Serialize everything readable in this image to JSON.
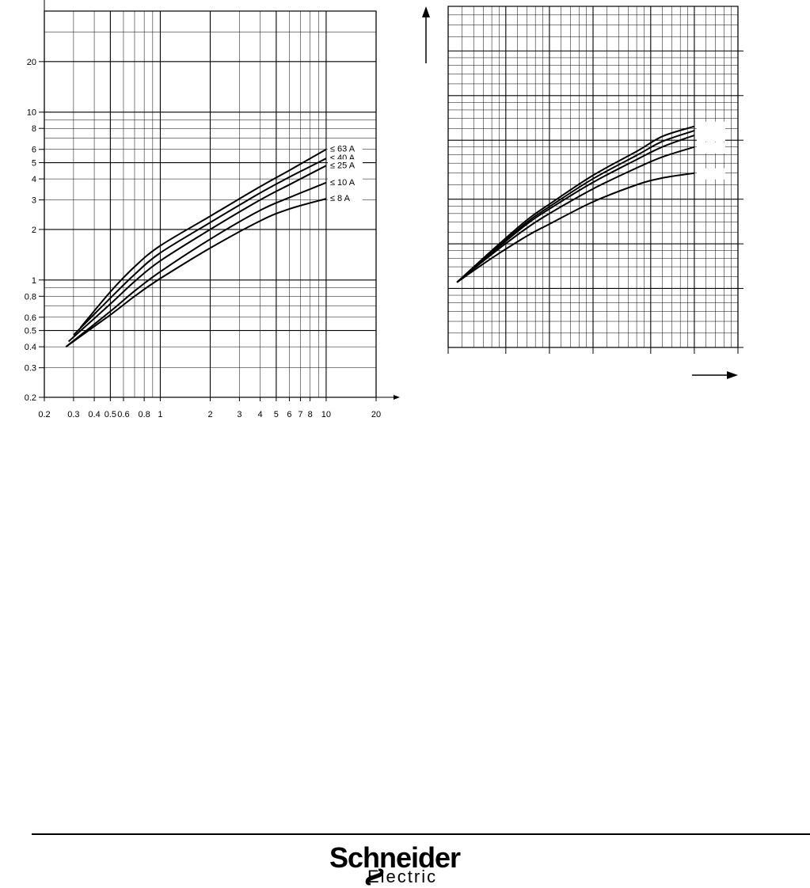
{
  "chart_data": [
    {
      "type": "line",
      "xscale": "log",
      "yscale": "log",
      "xlim": [
        0.2,
        20
      ],
      "ylim": [
        0.2,
        40
      ],
      "grid": true,
      "x_ticks": [
        "0.2",
        "0.3",
        "0.4",
        "0.5",
        "0.6",
        "0.8",
        "1",
        "2",
        "3",
        "4",
        "5",
        "6",
        "7",
        "8",
        "10",
        "20"
      ],
      "y_ticks": [
        "0.2",
        "0.3",
        "0.4",
        "0.5",
        "0.6",
        "0.8",
        "1",
        "2",
        "3",
        "4",
        "5",
        "6",
        "8",
        "10",
        "20"
      ],
      "series": [
        {
          "name": "≤ 63 A",
          "points": [
            [
              0.33,
              0.52
            ],
            [
              0.5,
              0.85
            ],
            [
              0.7,
              1.2
            ],
            [
              1,
              1.6
            ],
            [
              2,
              2.4
            ],
            [
              4,
              3.6
            ],
            [
              6,
              4.5
            ],
            [
              10,
              6.0
            ]
          ]
        },
        {
          "name": "≤ 40 A",
          "points": [
            [
              0.3,
              0.47
            ],
            [
              0.5,
              0.78
            ],
            [
              0.7,
              1.08
            ],
            [
              1,
              1.45
            ],
            [
              2,
              2.2
            ],
            [
              4,
              3.3
            ],
            [
              6,
              4.1
            ],
            [
              10,
              5.3
            ]
          ]
        },
        {
          "name": "≤ 25 A",
          "points": [
            [
              0.28,
              0.43
            ],
            [
              0.5,
              0.72
            ],
            [
              0.7,
              0.98
            ],
            [
              1,
              1.3
            ],
            [
              2,
              2.0
            ],
            [
              4,
              3.0
            ],
            [
              6,
              3.7
            ],
            [
              10,
              4.8
            ]
          ]
        },
        {
          "name": "≤ 10 A",
          "points": [
            [
              0.27,
              0.4
            ],
            [
              0.5,
              0.65
            ],
            [
              0.7,
              0.86
            ],
            [
              1,
              1.12
            ],
            [
              2,
              1.75
            ],
            [
              4,
              2.6
            ],
            [
              6,
              3.1
            ],
            [
              10,
              3.8
            ]
          ]
        },
        {
          "name": "≤ 8 A",
          "points": [
            [
              0.27,
              0.4
            ],
            [
              0.5,
              0.62
            ],
            [
              0.7,
              0.8
            ],
            [
              1,
              1.02
            ],
            [
              2,
              1.55
            ],
            [
              4,
              2.25
            ],
            [
              6,
              2.65
            ],
            [
              10,
              3.05
            ]
          ]
        }
      ]
    },
    {
      "type": "line",
      "xscale": "log",
      "yscale": "log",
      "xlim": [
        0.2,
        20
      ],
      "ylim": [
        0.2,
        40
      ],
      "grid": true,
      "series": [
        {
          "points": [
            [
              0.23,
              0.55
            ],
            [
              0.4,
              0.9
            ],
            [
              0.7,
              1.45
            ],
            [
              1,
              1.85
            ],
            [
              2,
              2.9
            ],
            [
              4,
              4.2
            ],
            [
              6,
              5.3
            ],
            [
              10,
              6.2
            ]
          ]
        },
        {
          "points": [
            [
              0.23,
              0.55
            ],
            [
              0.4,
              0.88
            ],
            [
              0.7,
              1.4
            ],
            [
              1,
              1.78
            ],
            [
              2,
              2.75
            ],
            [
              4,
              3.95
            ],
            [
              6,
              4.9
            ],
            [
              10,
              5.8
            ]
          ]
        },
        {
          "points": [
            [
              0.23,
              0.55
            ],
            [
              0.4,
              0.87
            ],
            [
              0.7,
              1.36
            ],
            [
              1,
              1.72
            ],
            [
              2,
              2.6
            ],
            [
              4,
              3.7
            ],
            [
              6,
              4.5
            ],
            [
              10,
              5.4
            ]
          ]
        },
        {
          "points": [
            [
              0.23,
              0.55
            ],
            [
              0.4,
              0.85
            ],
            [
              0.7,
              1.28
            ],
            [
              1,
              1.6
            ],
            [
              2,
              2.35
            ],
            [
              4,
              3.25
            ],
            [
              6,
              3.85
            ],
            [
              10,
              4.5
            ]
          ]
        },
        {
          "points": [
            [
              0.23,
              0.55
            ],
            [
              0.4,
              0.8
            ],
            [
              0.7,
              1.13
            ],
            [
              1,
              1.36
            ],
            [
              2,
              1.92
            ],
            [
              4,
              2.5
            ],
            [
              6,
              2.78
            ],
            [
              10,
              3.0
            ]
          ]
        }
      ]
    }
  ],
  "footer": {
    "brand_line1": "Schneider",
    "brand_line2": "Electric",
    "logo_icon": "schneider-electric-logo-icon"
  }
}
